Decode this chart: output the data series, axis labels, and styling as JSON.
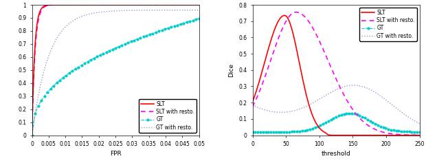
{
  "roc": {
    "xlim": [
      0,
      0.05
    ],
    "ylim": [
      0,
      1.0
    ],
    "xlabel": "FPR",
    "xtick_labels": [
      "0",
      "0.005",
      "0.01",
      "0.015",
      "0.02",
      "0.025",
      "0.03",
      "0.035",
      "0.04",
      "0.045",
      "0.05"
    ],
    "xtick_vals": [
      0,
      0.005,
      0.01,
      0.015,
      0.02,
      0.025,
      0.03,
      0.035,
      0.04,
      0.045,
      0.05
    ],
    "ytick_vals": [
      0,
      0.1,
      0.2,
      0.3,
      0.4,
      0.5,
      0.6,
      0.7,
      0.8,
      0.9,
      1
    ],
    "ytick_labels": [
      "0",
      "0.1",
      "0.2",
      "0.3",
      "0.4",
      "0.5",
      "0.6",
      "0.7",
      "0.8",
      "0.9",
      "1"
    ],
    "legend_entries": [
      "SLT",
      "SLT with resto.",
      "GT",
      "GT with resto."
    ],
    "slt_color": "#FF0000",
    "slt_resto_color": "#FF00FF",
    "gt_color": "#00CCCC",
    "gt_resto_color": "#9999CC"
  },
  "dice": {
    "xlim": [
      0,
      250
    ],
    "ylim": [
      0,
      0.8
    ],
    "xlabel": "threshold",
    "ylabel": "Dice",
    "xtick_vals": [
      0,
      50,
      100,
      150,
      200,
      250
    ],
    "xtick_labels": [
      "0",
      "50",
      "100",
      "150",
      "200",
      "250"
    ],
    "ytick_vals": [
      0,
      0.1,
      0.2,
      0.3,
      0.4,
      0.5,
      0.6,
      0.7,
      0.8
    ],
    "ytick_labels": [
      "0",
      "0.1",
      "0.2",
      "0.3",
      "0.4",
      "0.5",
      "0.6",
      "0.7",
      "0.8"
    ],
    "legend_entries": [
      "SLT",
      "SLT with resto.",
      "GT",
      "GT with resto."
    ],
    "slt_color": "#FF0000",
    "slt_resto_color": "#FF00FF",
    "gt_color": "#00CCCC",
    "gt_resto_color": "#9999CC"
  },
  "fig_bg": "#FFFFFF",
  "tick_fs": 5.5,
  "label_fs": 6.5,
  "legend_fs": 5.5
}
